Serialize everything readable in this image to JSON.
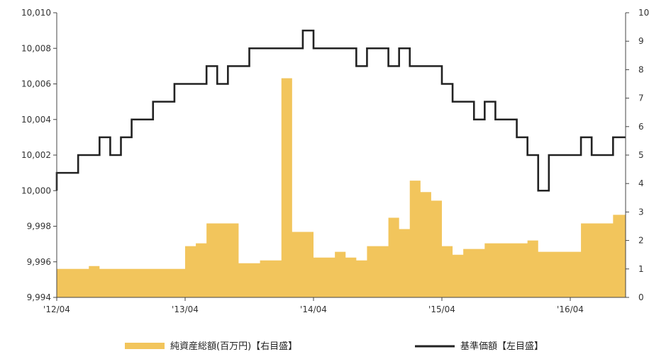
{
  "chart_data": {
    "type": "area+line",
    "x_ticks": [
      "'12/04",
      "'13/04",
      "'14/04",
      "'15/04",
      "'16/04"
    ],
    "left_axis": {
      "ylim": [
        9994,
        10010
      ],
      "ticks": [
        "9,994",
        "9,996",
        "9,998",
        "10,000",
        "10,002",
        "10,004",
        "10,006",
        "10,008",
        "10,010"
      ]
    },
    "right_axis": {
      "ylim": [
        0,
        10
      ],
      "ticks": [
        "0",
        "1",
        "2",
        "3",
        "4",
        "5",
        "6",
        "7",
        "8",
        "9",
        "10"
      ]
    },
    "series": [
      {
        "name": "純資産総額(百万円)【右目盛】",
        "type": "area",
        "axis": "right",
        "color": "#f2c55c",
        "points": [
          [
            "2012-04",
            1.0
          ],
          [
            "2012-06",
            1.0
          ],
          [
            "2012-07",
            1.1
          ],
          [
            "2012-08",
            1.0
          ],
          [
            "2012-12",
            1.0
          ],
          [
            "2013-03",
            1.0
          ],
          [
            "2013-04",
            1.8
          ],
          [
            "2013-05",
            1.9
          ],
          [
            "2013-06",
            2.6
          ],
          [
            "2013-07",
            2.6
          ],
          [
            "2013-08",
            2.6
          ],
          [
            "2013-09",
            1.2
          ],
          [
            "2013-10",
            1.2
          ],
          [
            "2013-11",
            1.3
          ],
          [
            "2013-12",
            1.3
          ],
          [
            "2014-01",
            7.7
          ],
          [
            "2014-02",
            2.3
          ],
          [
            "2014-03",
            2.3
          ],
          [
            "2014-04",
            1.4
          ],
          [
            "2014-05",
            1.4
          ],
          [
            "2014-06",
            1.6
          ],
          [
            "2014-07",
            1.4
          ],
          [
            "2014-08",
            1.3
          ],
          [
            "2014-09",
            1.8
          ],
          [
            "2014-10",
            1.8
          ],
          [
            "2014-11",
            2.8
          ],
          [
            "2014-12",
            2.4
          ],
          [
            "2015-01",
            4.1
          ],
          [
            "2015-02",
            3.7
          ],
          [
            "2015-03",
            3.4
          ],
          [
            "2015-04",
            1.8
          ],
          [
            "2015-05",
            1.5
          ],
          [
            "2015-06",
            1.7
          ],
          [
            "2015-07",
            1.7
          ],
          [
            "2015-08",
            1.9
          ],
          [
            "2015-09",
            1.9
          ],
          [
            "2015-10",
            1.9
          ],
          [
            "2015-11",
            1.9
          ],
          [
            "2015-12",
            2.0
          ],
          [
            "2016-01",
            1.6
          ],
          [
            "2016-02",
            1.6
          ],
          [
            "2016-03",
            1.6
          ],
          [
            "2016-04",
            1.6
          ],
          [
            "2016-05",
            2.6
          ],
          [
            "2016-06",
            2.6
          ],
          [
            "2016-07",
            2.6
          ],
          [
            "2016-08",
            2.9
          ]
        ]
      },
      {
        "name": "基準価額【左目盛】",
        "type": "line",
        "axis": "left",
        "color": "#222222",
        "points": [
          [
            "2012-04",
            10000
          ],
          [
            "2012-04",
            10001
          ],
          [
            "2012-05",
            10001
          ],
          [
            "2012-06",
            10002
          ],
          [
            "2012-07",
            10002
          ],
          [
            "2012-08",
            10003
          ],
          [
            "2012-09",
            10002
          ],
          [
            "2012-10",
            10003
          ],
          [
            "2012-11",
            10004
          ],
          [
            "2012-12",
            10004
          ],
          [
            "2013-01",
            10005
          ],
          [
            "2013-02",
            10005
          ],
          [
            "2013-03",
            10006
          ],
          [
            "2013-04",
            10006
          ],
          [
            "2013-05",
            10006
          ],
          [
            "2013-06",
            10007
          ],
          [
            "2013-07",
            10006
          ],
          [
            "2013-08",
            10007
          ],
          [
            "2013-09",
            10007
          ],
          [
            "2013-10",
            10008
          ],
          [
            "2013-11",
            10008
          ],
          [
            "2013-12",
            10008
          ],
          [
            "2014-01",
            10008
          ],
          [
            "2014-02",
            10008
          ],
          [
            "2014-03",
            10009
          ],
          [
            "2014-04",
            10008
          ],
          [
            "2014-05",
            10008
          ],
          [
            "2014-06",
            10008
          ],
          [
            "2014-07",
            10008
          ],
          [
            "2014-08",
            10007
          ],
          [
            "2014-09",
            10008
          ],
          [
            "2014-10",
            10008
          ],
          [
            "2014-11",
            10007
          ],
          [
            "2014-12",
            10008
          ],
          [
            "2015-01",
            10007
          ],
          [
            "2015-02",
            10007
          ],
          [
            "2015-03",
            10007
          ],
          [
            "2015-04",
            10006
          ],
          [
            "2015-05",
            10005
          ],
          [
            "2015-06",
            10005
          ],
          [
            "2015-07",
            10004
          ],
          [
            "2015-08",
            10005
          ],
          [
            "2015-09",
            10004
          ],
          [
            "2015-10",
            10004
          ],
          [
            "2015-11",
            10003
          ],
          [
            "2015-12",
            10002
          ],
          [
            "2016-01",
            10000
          ],
          [
            "2016-02",
            10002
          ],
          [
            "2016-03",
            10002
          ],
          [
            "2016-04",
            10002
          ],
          [
            "2016-05",
            10003
          ],
          [
            "2016-06",
            10002
          ],
          [
            "2016-07",
            10002
          ],
          [
            "2016-08",
            10003
          ]
        ]
      }
    ],
    "legend_placement": "bottom",
    "grid": false
  },
  "legend": {
    "area_label": "純資産総額(百万円)【右目盛】",
    "line_label": "基準価額【左目盛】"
  }
}
